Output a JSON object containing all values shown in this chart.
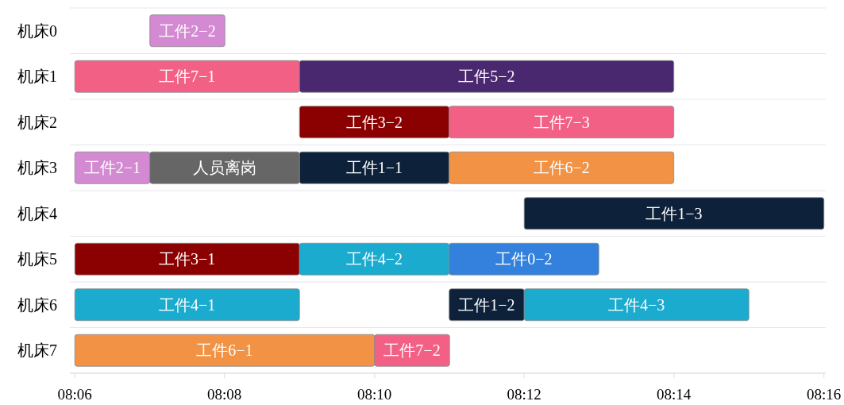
{
  "chart_data": {
    "type": "bar",
    "orientation": "horizontal",
    "grid": "y",
    "categories": [
      "机床0",
      "机床1",
      "机床2",
      "机床3",
      "机床4",
      "机床5",
      "机床6",
      "机床7"
    ],
    "xlim": [
      8.0989,
      8.2671
    ],
    "xticks": [
      {
        "value": 8.1,
        "label": "08:06"
      },
      {
        "value": 8.1333,
        "label": "08:08"
      },
      {
        "value": 8.1667,
        "label": "08:10"
      },
      {
        "value": 8.2,
        "label": "08:12"
      },
      {
        "value": 8.2333,
        "label": "08:14"
      },
      {
        "value": 8.2667,
        "label": "08:16"
      }
    ],
    "series": [
      {
        "color": "#d48ad2",
        "values": [
          0.0167,
          null,
          null,
          null,
          null,
          null,
          null,
          null
        ],
        "base": [
          8.1167,
          null,
          null,
          null,
          null,
          null,
          null,
          null
        ],
        "value_labels": [
          "工件2−2",
          null,
          null,
          null,
          null,
          null,
          null,
          null
        ]
      },
      {
        "color": "#f26185",
        "values": [
          null,
          0.05,
          null,
          null,
          null,
          null,
          null,
          null
        ],
        "base": [
          null,
          8.1,
          null,
          null,
          null,
          null,
          null,
          null
        ],
        "value_labels": [
          null,
          "工件7−1",
          null,
          null,
          null,
          null,
          null,
          null
        ]
      },
      {
        "color": "#4a286f",
        "values": [
          null,
          0.0833,
          null,
          null,
          null,
          null,
          null,
          null
        ],
        "base": [
          null,
          8.15,
          null,
          null,
          null,
          null,
          null,
          null
        ],
        "value_labels": [
          null,
          "工件5−2",
          null,
          null,
          null,
          null,
          null,
          null
        ]
      },
      {
        "color": "#8b0000",
        "values": [
          null,
          null,
          0.0333,
          null,
          null,
          null,
          null,
          null
        ],
        "base": [
          null,
          null,
          8.15,
          null,
          null,
          null,
          null,
          null
        ],
        "value_labels": [
          null,
          null,
          "工件3−2",
          null,
          null,
          null,
          null,
          null
        ]
      },
      {
        "color": "#f26185",
        "values": [
          null,
          null,
          0.05,
          null,
          null,
          null,
          null,
          null
        ],
        "base": [
          null,
          null,
          8.1833,
          null,
          null,
          null,
          null,
          null
        ],
        "value_labels": [
          null,
          null,
          "工件7−3",
          null,
          null,
          null,
          null,
          null
        ]
      },
      {
        "color": "#d48ad2",
        "values": [
          null,
          null,
          null,
          0.0167,
          null,
          null,
          null,
          null
        ],
        "base": [
          null,
          null,
          null,
          8.1,
          null,
          null,
          null,
          null
        ],
        "value_labels": [
          null,
          null,
          null,
          "工件2−1",
          null,
          null,
          null,
          null
        ]
      },
      {
        "color": "#666666",
        "values": [
          null,
          null,
          null,
          0.0333,
          null,
          null,
          null,
          null
        ],
        "base": [
          null,
          null,
          null,
          8.1167,
          null,
          null,
          null,
          null
        ],
        "value_labels": [
          null,
          null,
          null,
          "人员离岗",
          null,
          null,
          null,
          null
        ]
      },
      {
        "color": "#0d213a",
        "values": [
          null,
          null,
          null,
          0.0333,
          null,
          null,
          null,
          null
        ],
        "base": [
          null,
          null,
          null,
          8.15,
          null,
          null,
          null,
          null
        ],
        "value_labels": [
          null,
          null,
          null,
          "工件1−1",
          null,
          null,
          null,
          null
        ]
      },
      {
        "color": "#f29244",
        "values": [
          null,
          null,
          null,
          0.05,
          null,
          null,
          null,
          null
        ],
        "base": [
          null,
          null,
          null,
          8.1833,
          null,
          null,
          null,
          null
        ],
        "value_labels": [
          null,
          null,
          null,
          "工件6−2",
          null,
          null,
          null,
          null
        ]
      },
      {
        "color": "#0d213a",
        "values": [
          null,
          null,
          null,
          null,
          0.0667,
          null,
          null,
          null
        ],
        "base": [
          null,
          null,
          null,
          null,
          8.2,
          null,
          null,
          null
        ],
        "value_labels": [
          null,
          null,
          null,
          null,
          "工件1−3",
          null,
          null,
          null
        ]
      },
      {
        "color": "#8b0000",
        "values": [
          null,
          null,
          null,
          null,
          null,
          0.05,
          null,
          null
        ],
        "base": [
          null,
          null,
          null,
          null,
          null,
          8.1,
          null,
          null
        ],
        "value_labels": [
          null,
          null,
          null,
          null,
          null,
          "工件3−1",
          null,
          null
        ]
      },
      {
        "color": "#1aabcf",
        "values": [
          null,
          null,
          null,
          null,
          null,
          0.0333,
          null,
          null
        ],
        "base": [
          null,
          null,
          null,
          null,
          null,
          8.15,
          null,
          null
        ],
        "value_labels": [
          null,
          null,
          null,
          null,
          null,
          "工件4−2",
          null,
          null
        ]
      },
      {
        "color": "#3381dd",
        "values": [
          null,
          null,
          null,
          null,
          null,
          0.0333,
          null,
          null
        ],
        "base": [
          null,
          null,
          null,
          null,
          null,
          8.1833,
          null,
          null
        ],
        "value_labels": [
          null,
          null,
          null,
          null,
          null,
          "工件0−2",
          null,
          null
        ]
      },
      {
        "color": "#1aabcf",
        "values": [
          null,
          null,
          null,
          null,
          null,
          null,
          0.05,
          null
        ],
        "base": [
          null,
          null,
          null,
          null,
          null,
          null,
          8.1,
          null
        ],
        "value_labels": [
          null,
          null,
          null,
          null,
          null,
          null,
          "工件4−1",
          null
        ]
      },
      {
        "color": "#0d213a",
        "values": [
          null,
          null,
          null,
          null,
          null,
          null,
          0.0167,
          null
        ],
        "base": [
          null,
          null,
          null,
          null,
          null,
          null,
          8.1833,
          null
        ],
        "value_labels": [
          null,
          null,
          null,
          null,
          null,
          null,
          "工件1−2",
          null
        ]
      },
      {
        "color": "#1aabcf",
        "values": [
          null,
          null,
          null,
          null,
          null,
          null,
          0.05,
          null
        ],
        "base": [
          null,
          null,
          null,
          null,
          null,
          null,
          8.2,
          null
        ],
        "value_labels": [
          null,
          null,
          null,
          null,
          null,
          null,
          "工件4−3",
          null
        ]
      },
      {
        "color": "#f29244",
        "values": [
          null,
          null,
          null,
          null,
          null,
          null,
          null,
          0.0667
        ],
        "base": [
          null,
          null,
          null,
          null,
          null,
          null,
          null,
          8.1
        ],
        "value_labels": [
          null,
          null,
          null,
          null,
          null,
          null,
          null,
          "工件6−1"
        ]
      },
      {
        "color": "#f26185",
        "values": [
          null,
          null,
          null,
          null,
          null,
          null,
          null,
          0.0167
        ],
        "base": [
          null,
          null,
          null,
          null,
          null,
          null,
          null,
          8.1667
        ],
        "value_labels": [
          null,
          null,
          null,
          null,
          null,
          null,
          null,
          "工件7−2"
        ]
      }
    ]
  }
}
